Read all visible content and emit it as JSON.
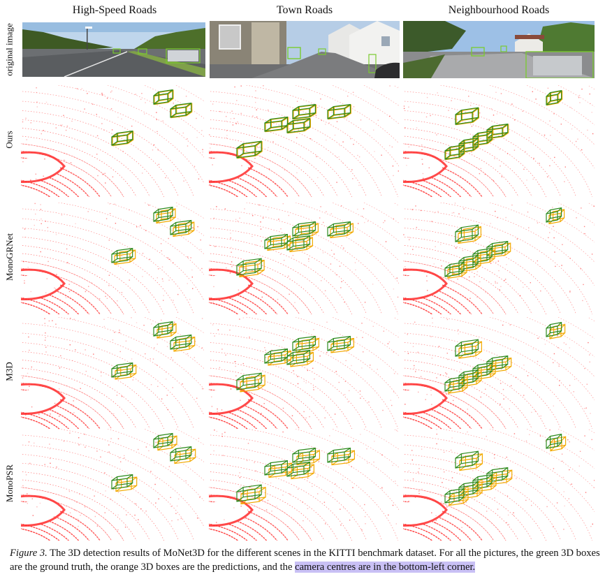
{
  "columns": [
    "High-Speed Roads",
    "Town Roads",
    "Neighbourhood Roads"
  ],
  "rows": [
    "original image",
    "Ours",
    "MonoGRNet",
    "M3D",
    "MonoPSR"
  ],
  "caption": {
    "label": "Figure 3.",
    "text": "The 3D detection results of MoNet3D for the different scenes in the KITTI benchmark dataset. For all the pictures, the green 3D boxes are the ground truth, the orange 3D boxes are the predictions, and the",
    "highlight": "camera centres are in the bottom-left corner."
  },
  "colors": {
    "ground_truth": "#2e8b1e",
    "prediction": "#f2a900",
    "lidar": "#ff2a2a",
    "highlight": "#c9c0f5"
  }
}
